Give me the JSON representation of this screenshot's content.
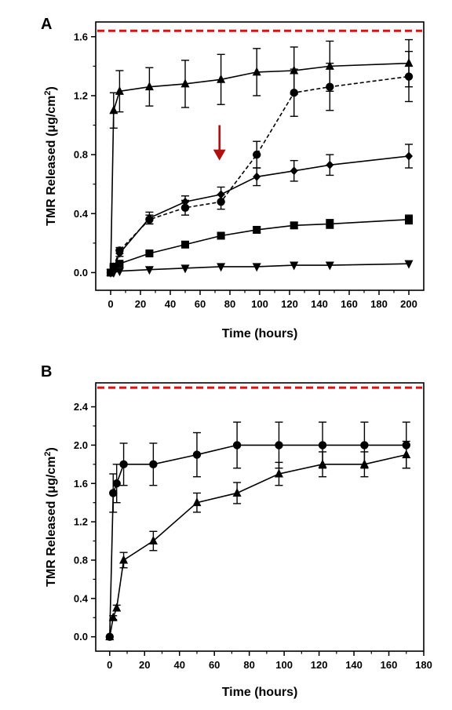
{
  "chart_data": [
    {
      "panel": "A",
      "type": "line",
      "xlabel": "Time (hours)",
      "ylabel_prefix": "TMR Released (μg/cm",
      "ylabel_sup": "2",
      "ylabel_suffix": ")",
      "xlim": [
        -10,
        210
      ],
      "ylim": [
        -0.12,
        1.7
      ],
      "xticks": [
        0,
        20,
        40,
        60,
        80,
        100,
        120,
        140,
        160,
        180,
        200
      ],
      "yticks": [
        0.0,
        0.4,
        0.8,
        1.2,
        1.6
      ],
      "ytick_labels": [
        "0.0",
        "0.4",
        "0.8",
        "1.2",
        "1.6"
      ],
      "reference_line": {
        "y": 1.64,
        "color": "#dd1111",
        "style": "dashed"
      },
      "annotation_arrow": {
        "x": 73,
        "y_from": 1.0,
        "y_to": 0.76,
        "color": "#b01010"
      },
      "series": [
        {
          "marker": "triangle-up",
          "line": "solid",
          "x": [
            0,
            2,
            6,
            26,
            50,
            74,
            98,
            123,
            147,
            200
          ],
          "y": [
            0.0,
            1.1,
            1.23,
            1.26,
            1.28,
            1.31,
            1.36,
            1.37,
            1.4,
            1.42
          ],
          "err": [
            0.0,
            0.12,
            0.14,
            0.13,
            0.16,
            0.17,
            0.16,
            0.16,
            0.17,
            0.16
          ]
        },
        {
          "marker": "circle",
          "line": "dashed",
          "x": [
            0,
            2,
            6,
            26,
            50,
            74,
            98,
            123,
            147,
            200
          ],
          "y": [
            0.0,
            0.04,
            0.15,
            0.36,
            0.44,
            0.48,
            0.8,
            1.22,
            1.26,
            1.33
          ],
          "err": [
            0.0,
            0.02,
            0.02,
            0.03,
            0.05,
            0.05,
            0.09,
            0.16,
            0.16,
            0.17
          ]
        },
        {
          "marker": "diamond",
          "line": "solid",
          "x": [
            0,
            2,
            6,
            26,
            50,
            74,
            98,
            123,
            147,
            200
          ],
          "y": [
            0.0,
            0.03,
            0.13,
            0.37,
            0.48,
            0.53,
            0.65,
            0.69,
            0.73,
            0.79
          ],
          "err": [
            0.0,
            0.02,
            0.02,
            0.04,
            0.04,
            0.05,
            0.06,
            0.07,
            0.07,
            0.08
          ]
        },
        {
          "marker": "square",
          "line": "solid",
          "x": [
            0,
            2,
            6,
            26,
            50,
            74,
            98,
            123,
            147,
            200
          ],
          "y": [
            0.0,
            0.04,
            0.06,
            0.13,
            0.19,
            0.25,
            0.29,
            0.32,
            0.33,
            0.36
          ],
          "err": [
            0.0,
            0.01,
            0.01,
            0.01,
            0.02,
            0.02,
            0.02,
            0.02,
            0.03,
            0.03
          ]
        },
        {
          "marker": "triangle-down",
          "line": "solid",
          "x": [
            0,
            2,
            6,
            26,
            50,
            74,
            98,
            123,
            147,
            200
          ],
          "y": [
            0.0,
            0.0,
            0.01,
            0.02,
            0.03,
            0.04,
            0.04,
            0.05,
            0.05,
            0.06
          ],
          "err": [
            0.0,
            0.0,
            0.0,
            0.0,
            0.0,
            0.0,
            0.0,
            0.0,
            0.0,
            0.0
          ]
        }
      ]
    },
    {
      "panel": "B",
      "type": "line",
      "xlabel": "Time (hours)",
      "ylabel_prefix": "TMR Released (μg/cm",
      "ylabel_sup": "2",
      "ylabel_suffix": ")",
      "xlim": [
        -8,
        180
      ],
      "ylim": [
        -0.15,
        2.65
      ],
      "xticks": [
        0,
        20,
        40,
        60,
        80,
        100,
        120,
        140,
        160,
        180
      ],
      "yticks": [
        0.0,
        0.4,
        0.8,
        1.2,
        1.6,
        2.0,
        2.4
      ],
      "ytick_labels": [
        "0.0",
        "0.4",
        "0.8",
        "1.2",
        "1.6",
        "2.0",
        "2.4"
      ],
      "reference_line": {
        "y": 2.6,
        "color": "#dd1111",
        "style": "dashed"
      },
      "series": [
        {
          "marker": "circle",
          "line": "solid",
          "x": [
            0,
            2,
            4,
            8,
            25,
            50,
            73,
            97,
            122,
            146,
            170
          ],
          "y": [
            0.0,
            1.5,
            1.6,
            1.8,
            1.8,
            1.9,
            2.0,
            2.0,
            2.0,
            2.0,
            2.0
          ],
          "err": [
            0.0,
            0.2,
            0.2,
            0.22,
            0.22,
            0.23,
            0.24,
            0.24,
            0.24,
            0.24,
            0.24
          ]
        },
        {
          "marker": "triangle-up",
          "line": "solid",
          "x": [
            0,
            2,
            4,
            8,
            25,
            50,
            73,
            97,
            122,
            146,
            170
          ],
          "y": [
            0.0,
            0.2,
            0.3,
            0.8,
            1.0,
            1.4,
            1.5,
            1.7,
            1.8,
            1.8,
            1.9
          ],
          "err": [
            0.0,
            0.02,
            0.03,
            0.08,
            0.1,
            0.1,
            0.11,
            0.12,
            0.13,
            0.13,
            0.14
          ]
        }
      ]
    }
  ]
}
